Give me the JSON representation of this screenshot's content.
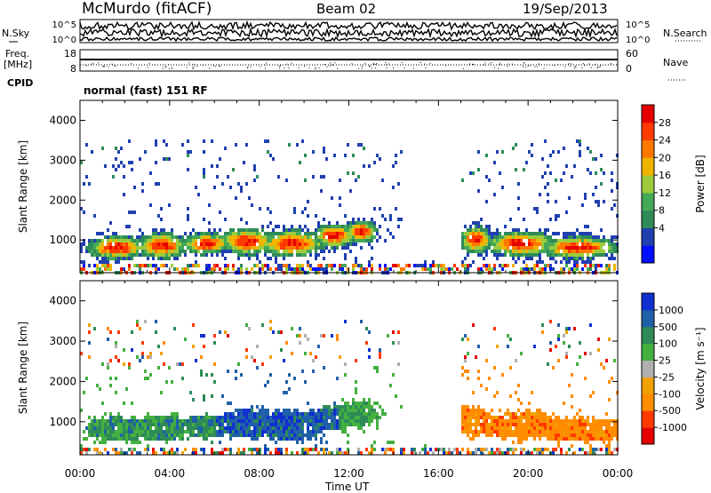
{
  "header": {
    "station": "McMurdo (fitACF)",
    "beam": "Beam 02",
    "date": "19/Sep/2013"
  },
  "labels": {
    "nsky": "N.Sky",
    "nsearch": "N.Search",
    "freq_line1": "Freq.",
    "freq_line2": "[MHz]",
    "nave": "Nave",
    "cpid": "CPID",
    "cpid_value": "normal (fast) 151 RF",
    "time_axis": "Time UT",
    "ylabel_top": "Slant Range [km]",
    "ylabel_bottom": "Slant Range [km]"
  },
  "colors": {
    "power": [
      "#0010ff",
      "#2040b0",
      "#2e8b57",
      "#44a857",
      "#9ccc3c",
      "#f0b400",
      "#ff7800",
      "#ff3a00",
      "#e50000"
    ],
    "velocity": [
      "#e50000",
      "#ff3a00",
      "#ff8c00",
      "#f0a000",
      "#b0b0b0",
      "#44b040",
      "#2e8b57",
      "#2060a8",
      "#1030d0"
    ]
  },
  "chart_data": [
    {
      "type": "line",
      "name": "noise-panel",
      "left_labels": [
        "10^5",
        "10^0"
      ],
      "right_labels": [
        "10^5",
        "10^0"
      ]
    },
    {
      "type": "line",
      "name": "frequency-panel",
      "left_ticks": [
        "18",
        "8"
      ],
      "right_ticks": [
        "60",
        "0"
      ]
    },
    {
      "type": "heatmap",
      "name": "power",
      "title": "",
      "xlabel": "Time UT",
      "ylabel": "Slant Range [km]",
      "x_ticks": [
        "00:00",
        "04:00",
        "08:00",
        "12:00",
        "16:00",
        "20:00",
        "00:00"
      ],
      "xlim_hours": [
        0,
        24
      ],
      "y_ticks": [
        1000,
        2000,
        3000,
        4000
      ],
      "ylim": [
        180,
        4500
      ],
      "colorbar": {
        "label": "Power [dB]",
        "ticks": [
          "4",
          "8",
          "12",
          "16",
          "20",
          "24",
          "28"
        ]
      }
    },
    {
      "type": "heatmap",
      "name": "velocity",
      "title": "",
      "xlabel": "Time UT",
      "ylabel": "Slant Range [km]",
      "x_ticks": [
        "00:00",
        "04:00",
        "08:00",
        "12:00",
        "16:00",
        "20:00",
        "00:00"
      ],
      "xlim_hours": [
        0,
        24
      ],
      "y_ticks": [
        1000,
        2000,
        3000,
        4000
      ],
      "ylim": [
        180,
        4500
      ],
      "colorbar": {
        "label": "Velocity [m s⁻¹]",
        "ticks": [
          "1000",
          "500",
          "100",
          "25",
          "-25",
          "-100",
          "-500",
          "-1000"
        ]
      }
    }
  ]
}
